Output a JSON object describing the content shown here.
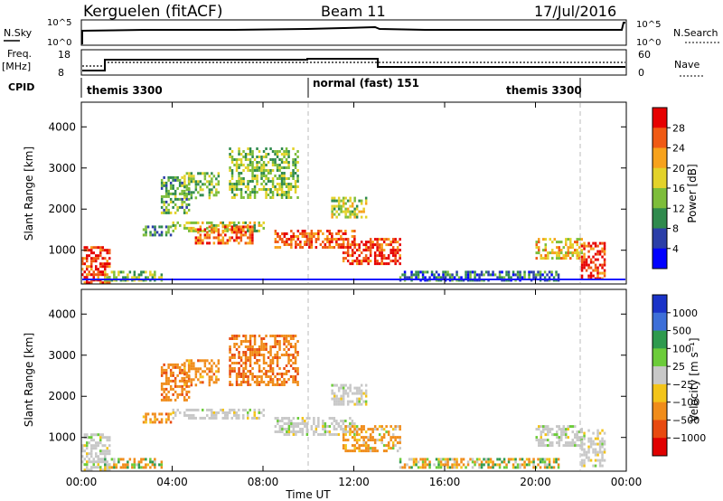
{
  "header": {
    "station": "Kerguelen (fitACF)",
    "beam": "Beam 11",
    "date": "17/Jul/2016"
  },
  "top_panels": {
    "nsky_label": "N.Sky",
    "nsearch_label": "N.Search",
    "noise_ticks_left": [
      "10^5",
      "10^0"
    ],
    "noise_ticks_right": [
      "10^5",
      "10^0"
    ],
    "freq_label": "Freq.",
    "freq_unit": "[MHz]",
    "freq_ticks": [
      "18",
      "8"
    ],
    "nave_label": "Nave",
    "nave_ticks": [
      "60",
      "0"
    ],
    "cpid_label": "CPID",
    "cpid_segments": [
      {
        "label": "themis 3300",
        "start_h": 0,
        "end_h": 10
      },
      {
        "label": "normal (fast) 151",
        "start_h": 10,
        "end_h": 22
      },
      {
        "label": "themis 3300",
        "start_h": 22,
        "end_h": 24
      }
    ]
  },
  "power_panel": {
    "ylabel": "Slant Range [km]",
    "yticks": [
      "1000",
      "2000",
      "3000",
      "4000"
    ],
    "colorbar_label": "Power [dB]",
    "colorbar_ticks": [
      "4",
      "8",
      "12",
      "16",
      "20",
      "24",
      "28"
    ],
    "colors": [
      "#0000ff",
      "#2b3ea8",
      "#2f8a4d",
      "#7dbd3a",
      "#e3d22a",
      "#f7a21c",
      "#f05a14",
      "#e60000"
    ]
  },
  "velocity_panel": {
    "ylabel": "Slant Range [km]",
    "yticks": [
      "1000",
      "2000",
      "3000",
      "4000"
    ],
    "colorbar_label": "Velocity [m s⁻¹]",
    "colorbar_ticks": [
      "1000",
      "500",
      "100",
      "25",
      "−25",
      "−100",
      "−500",
      "−1000"
    ],
    "colors": [
      "#1a33c8",
      "#3d6fd8",
      "#2e9a4e",
      "#6ccc3a",
      "#c8c8c8",
      "#f3c419",
      "#f08c1a",
      "#e84a10",
      "#e00000"
    ]
  },
  "time_axis": {
    "xlabel": "Time UT",
    "ticks": [
      "00:00",
      "04:00",
      "08:00",
      "12:00",
      "16:00",
      "20:00",
      "00:00"
    ]
  },
  "chart_data": [
    {
      "type": "heatmap",
      "title": "Power",
      "xlabel": "Time UT",
      "ylabel": "Slant Range [km]",
      "xlim": [
        0,
        24
      ],
      "ylim": [
        180,
        4600
      ],
      "colorbar": "Power [dB]",
      "clim": [
        0,
        30
      ],
      "regions": [
        {
          "t": [
            0,
            1.2
          ],
          "r": [
            200,
            1100
          ],
          "p": 28
        },
        {
          "t": [
            1.0,
            3.5
          ],
          "r": [
            300,
            500
          ],
          "p": 14
        },
        {
          "t": [
            2.7,
            3.9
          ],
          "r": [
            1400,
            1600
          ],
          "p": 10
        },
        {
          "t": [
            3.5,
            4.7
          ],
          "r": [
            1900,
            2800
          ],
          "p": 12
        },
        {
          "t": [
            4.5,
            6.0
          ],
          "r": [
            2300,
            2900
          ],
          "p": 14
        },
        {
          "t": [
            4.0,
            8.0
          ],
          "r": [
            1500,
            1700
          ],
          "p": 16
        },
        {
          "t": [
            5.0,
            7.5
          ],
          "r": [
            1200,
            1600
          ],
          "p": 26
        },
        {
          "t": [
            6.5,
            9.5
          ],
          "r": [
            2300,
            3500
          ],
          "p": 14
        },
        {
          "t": [
            8.5,
            12.0
          ],
          "r": [
            1100,
            1500
          ],
          "p": 26
        },
        {
          "t": [
            11.0,
            12.5
          ],
          "r": [
            1800,
            2300
          ],
          "p": 16
        },
        {
          "t": [
            11.5,
            14.0
          ],
          "r": [
            700,
            1300
          ],
          "p": 28
        },
        {
          "t": [
            14.0,
            21.0
          ],
          "r": [
            250,
            500
          ],
          "p": 8
        },
        {
          "t": [
            20.0,
            22.0
          ],
          "r": [
            800,
            1300
          ],
          "p": 20
        },
        {
          "t": [
            22.0,
            23.0
          ],
          "r": [
            300,
            1200
          ],
          "p": 28
        }
      ]
    },
    {
      "type": "heatmap",
      "title": "Velocity",
      "xlabel": "Time UT",
      "ylabel": "Slant Range [km]",
      "xlim": [
        0,
        24
      ],
      "ylim": [
        180,
        4600
      ],
      "colorbar": "Velocity [m s⁻¹]",
      "clim": [
        -1000,
        1000
      ],
      "regions": [
        {
          "t": [
            0,
            1.2
          ],
          "r": [
            200,
            1100
          ],
          "v": 0
        },
        {
          "t": [
            1.0,
            3.5
          ],
          "r": [
            300,
            500
          ],
          "v": -60
        },
        {
          "t": [
            2.7,
            3.9
          ],
          "r": [
            1400,
            1600
          ],
          "v": -300
        },
        {
          "t": [
            3.5,
            4.7
          ],
          "r": [
            1900,
            2800
          ],
          "v": -400
        },
        {
          "t": [
            4.5,
            6.0
          ],
          "r": [
            2300,
            2900
          ],
          "v": -300
        },
        {
          "t": [
            4.0,
            8.0
          ],
          "r": [
            1500,
            1700
          ],
          "v": 0
        },
        {
          "t": [
            6.5,
            9.5
          ],
          "r": [
            2300,
            3500
          ],
          "v": -400
        },
        {
          "t": [
            8.5,
            12.0
          ],
          "r": [
            1100,
            1500
          ],
          "v": 0
        },
        {
          "t": [
            11.0,
            12.5
          ],
          "r": [
            1800,
            2300
          ],
          "v": 0
        },
        {
          "t": [
            11.5,
            14.0
          ],
          "r": [
            700,
            1300
          ],
          "v": -200
        },
        {
          "t": [
            14.0,
            21.0
          ],
          "r": [
            250,
            500
          ],
          "v": -50
        },
        {
          "t": [
            20.0,
            22.0
          ],
          "r": [
            800,
            1300
          ],
          "v": 0
        },
        {
          "t": [
            22.0,
            23.0
          ],
          "r": [
            300,
            1200
          ],
          "v": 0
        }
      ]
    }
  ]
}
